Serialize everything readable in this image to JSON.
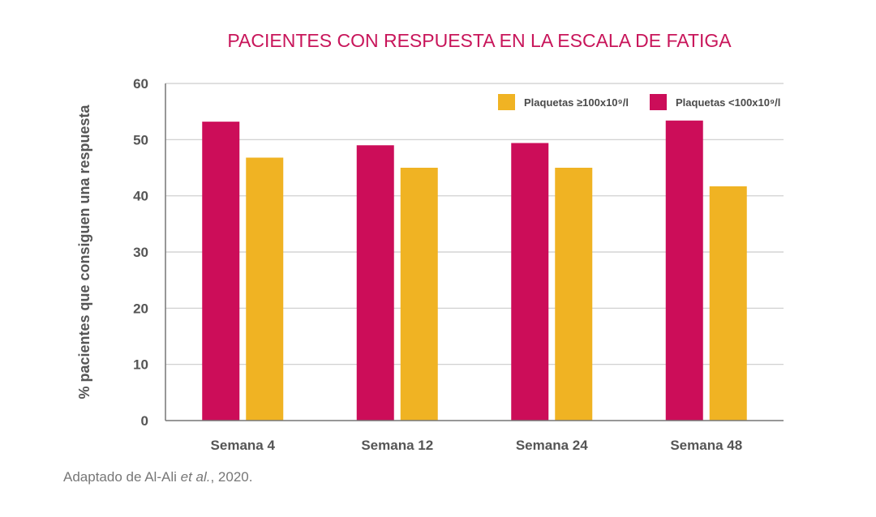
{
  "chart_data": {
    "type": "bar",
    "title": "PACIENTES CON RESPUESTA EN LA ESCALA DE FATIGA",
    "xlabel": "",
    "ylabel": "% pacientes que consiguen una respuesta",
    "ylim": [
      0,
      60
    ],
    "yticks": [
      0,
      10,
      20,
      30,
      40,
      50,
      60
    ],
    "grid": true,
    "legend_position": "top-right",
    "categories": [
      "Semana 4",
      "Semana 12",
      "Semana 24",
      "Semana 48"
    ],
    "series": [
      {
        "name": "Plaquetas <100x10⁹/l",
        "color": "#cc0d59",
        "values": [
          53.2,
          49.0,
          49.4,
          53.4
        ]
      },
      {
        "name": "Plaquetas ≥100x10⁹/l",
        "color": "#f0b323",
        "values": [
          46.8,
          45.0,
          45.0,
          41.7
        ]
      }
    ],
    "legend_order": [
      1,
      0
    ]
  },
  "source": {
    "prefix": "Adaptado de Al-Ali ",
    "italic": "et al.",
    "suffix": ", 2020."
  },
  "colors": {
    "title": "#c8155a",
    "axis_text": "#555555",
    "gridline": "#cccccc"
  }
}
